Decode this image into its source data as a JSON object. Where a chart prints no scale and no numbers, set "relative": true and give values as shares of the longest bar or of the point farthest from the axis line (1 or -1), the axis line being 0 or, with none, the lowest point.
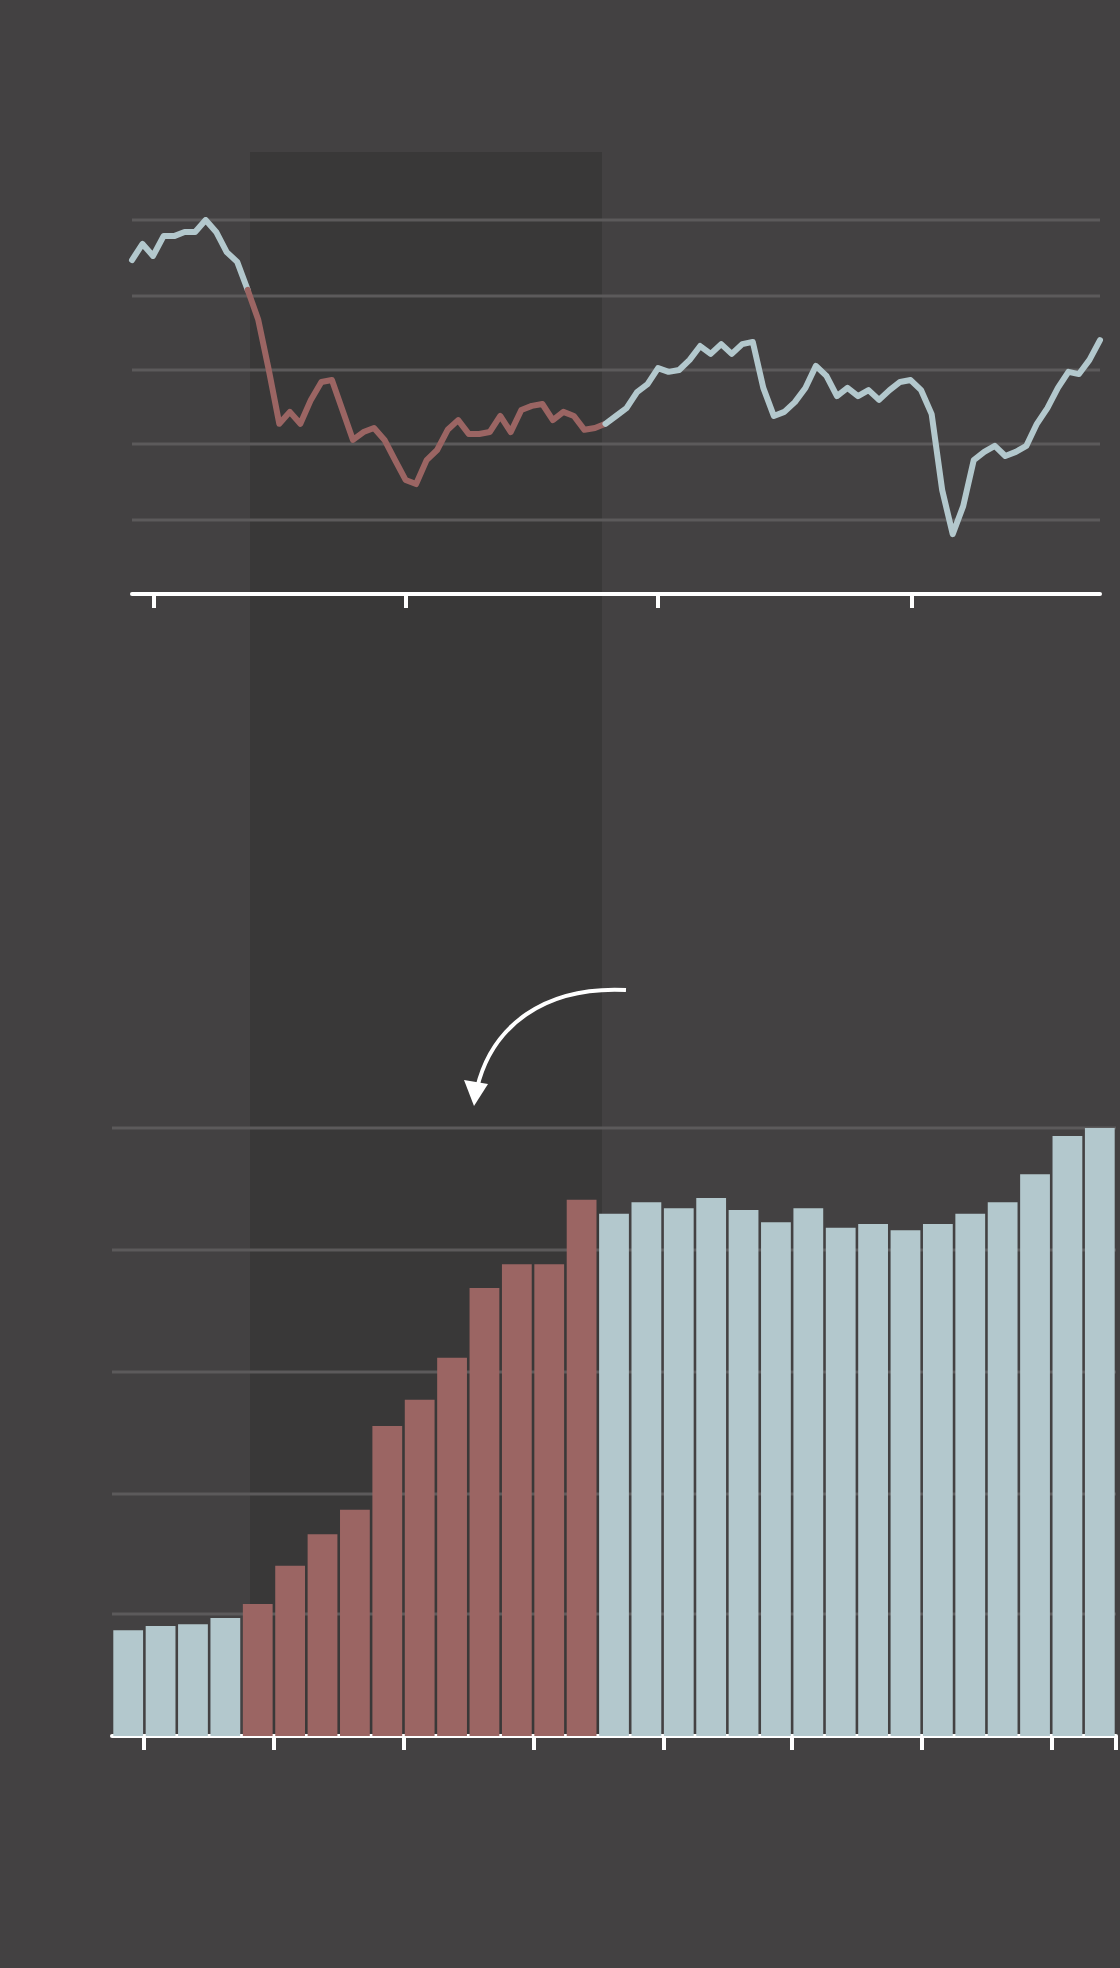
{
  "chart_data": [
    {
      "type": "line",
      "relative": true,
      "grid": "y",
      "categories": [
        null,
        null,
        null,
        null,
        null,
        null,
        null,
        null,
        null,
        null,
        null,
        null,
        null,
        null,
        null,
        null,
        null,
        null,
        null,
        null,
        null,
        null,
        null,
        null,
        null,
        null,
        null,
        null,
        null,
        null,
        null,
        null,
        null,
        null,
        null,
        null,
        null,
        null,
        null,
        null,
        null,
        null,
        null,
        null,
        null,
        null,
        null,
        null,
        null,
        null,
        null,
        null,
        null,
        null,
        null,
        null,
        null,
        null,
        null,
        null,
        null,
        null,
        null,
        null,
        null,
        null,
        null,
        null,
        null,
        null,
        null,
        null,
        null,
        null,
        null,
        null,
        null,
        null,
        null,
        null,
        null,
        null,
        null,
        null,
        null,
        null,
        null,
        null,
        null,
        null,
        null,
        null,
        null
      ],
      "series": [
        {
          "color": "#b3c8cd",
          "values": [
            0.893,
            0.936,
            0.904,
            0.957,
            0.957,
            0.968,
            0.968,
            1,
            0.968,
            0.914,
            0.888,
            0.813,
            null,
            null,
            null,
            null,
            null,
            null,
            null,
            null,
            null,
            null,
            null,
            null,
            null,
            null,
            null,
            null,
            null,
            null,
            null,
            null,
            null,
            null,
            null,
            null,
            null,
            null,
            null,
            null,
            null,
            null,
            null,
            null,
            null,
            null,
            null,
            null,
            null,
            null,
            null,
            null,
            null,
            null,
            null,
            null,
            null,
            null,
            null,
            null,
            null,
            null,
            null,
            null,
            null,
            null,
            null,
            null,
            null,
            null,
            null,
            null,
            null,
            null,
            null,
            null,
            null,
            null,
            null,
            null,
            null,
            null,
            null,
            null,
            null,
            null,
            null,
            null,
            null,
            null,
            null,
            null,
            null
          ]
        },
        {
          "color": "#9b6563",
          "values": [
            null,
            null,
            null,
            null,
            null,
            null,
            null,
            null,
            null,
            null,
            null,
            0.813,
            0.733,
            0.599,
            0.455,
            0.487,
            0.455,
            0.519,
            0.567,
            0.572,
            0.492,
            0.412,
            0.433,
            0.444,
            0.412,
            0.358,
            0.305,
            0.294,
            0.358,
            0.385,
            0.439,
            0.465,
            0.428,
            0.428,
            0.433,
            0.476,
            0.433,
            0.492,
            0.503,
            0.508,
            0.465,
            0.487,
            0.476,
            0.439,
            0.444,
            0.455,
            null,
            null,
            null,
            null,
            null,
            null,
            null,
            null,
            null,
            null,
            null,
            null,
            null,
            null,
            null,
            null,
            null,
            null,
            null,
            null,
            null,
            null,
            null,
            null,
            null,
            null,
            null,
            null,
            null,
            null,
            null,
            null,
            null,
            null,
            null,
            null,
            null,
            null,
            null,
            null,
            null,
            null,
            null,
            null,
            null,
            null,
            null
          ]
        },
        {
          "color": "#b3c8cd",
          "values": [
            null,
            null,
            null,
            null,
            null,
            null,
            null,
            null,
            null,
            null,
            null,
            null,
            null,
            null,
            null,
            null,
            null,
            null,
            null,
            null,
            null,
            null,
            null,
            null,
            null,
            null,
            null,
            null,
            null,
            null,
            null,
            null,
            null,
            null,
            null,
            null,
            null,
            null,
            null,
            null,
            null,
            null,
            null,
            null,
            null,
            0.455,
            0.476,
            0.497,
            0.54,
            0.561,
            0.604,
            0.594,
            0.599,
            0.626,
            0.663,
            0.642,
            0.668,
            0.642,
            0.668,
            0.674,
            0.551,
            0.476,
            0.487,
            0.513,
            0.551,
            0.61,
            0.583,
            0.529,
            0.551,
            0.529,
            0.545,
            0.519,
            0.545,
            0.567,
            0.572,
            0.545,
            0.481,
            0.278,
            0.16,
            0.235,
            0.358,
            0.38,
            0.396,
            0.369,
            0.38,
            0.396,
            0.455,
            0.497,
            0.551,
            0.594,
            0.588,
            0.626,
            0.679
          ]
        }
      ]
    },
    {
      "type": "bar",
      "relative": true,
      "grid": "y",
      "categories": [
        null,
        null,
        null,
        null,
        null,
        null,
        null,
        null,
        null,
        null,
        null,
        null,
        null,
        null,
        null,
        null,
        null,
        null,
        null,
        null,
        null,
        null,
        null,
        null,
        null,
        null,
        null,
        null,
        null,
        null,
        null
      ],
      "values": [
        0.174,
        0.181,
        0.184,
        0.194,
        0.217,
        0.28,
        0.332,
        0.372,
        0.51,
        0.553,
        0.622,
        0.737,
        0.776,
        0.776,
        0.882,
        0.859,
        0.878,
        0.868,
        0.885,
        0.865,
        0.845,
        0.868,
        0.836,
        0.842,
        0.832,
        0.842,
        0.859,
        0.878,
        0.924,
        0.987,
        1
      ],
      "colors": [
        "#b3c8cd",
        "#b3c8cd",
        "#b3c8cd",
        "#b3c8cd",
        "#9b6563",
        "#9b6563",
        "#9b6563",
        "#9b6563",
        "#9b6563",
        "#9b6563",
        "#9b6563",
        "#9b6563",
        "#9b6563",
        "#9b6563",
        "#9b6563",
        "#b3c8cd",
        "#b3c8cd",
        "#b3c8cd",
        "#b3c8cd",
        "#b3c8cd",
        "#b3c8cd",
        "#b3c8cd",
        "#b3c8cd",
        "#b3c8cd",
        "#b3c8cd",
        "#b3c8cd",
        "#b3c8cd",
        "#b3c8cd",
        "#b3c8cd",
        "#b3c8cd",
        "#b3c8cd"
      ]
    }
  ]
}
